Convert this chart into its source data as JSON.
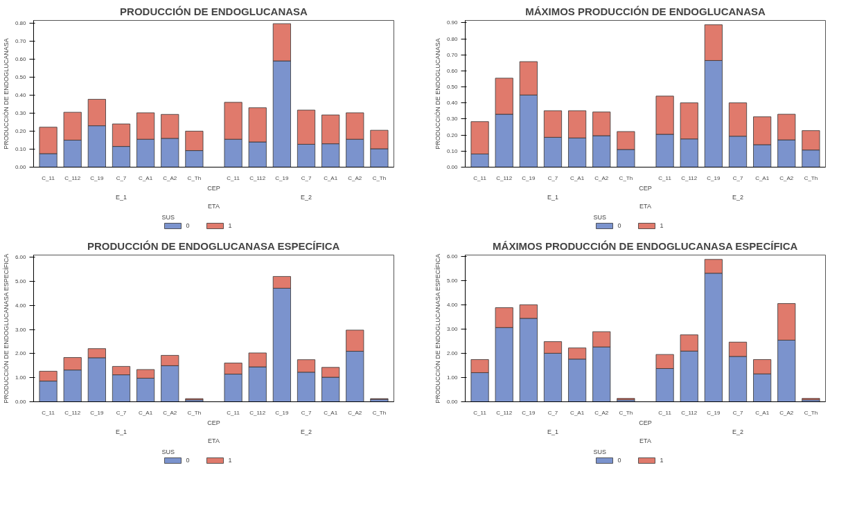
{
  "chart_data": [
    {
      "type": "bar",
      "stacked": true,
      "title": "PRODUCCIÓN DE ENDOGLUCANASA",
      "ylabel": "PRODUCCIÓN DE ENDOGLUCANASA",
      "xlabel": "CEP",
      "legend_title": "SUS",
      "legend": "bottom",
      "grid": false,
      "annotations": [
        "E_1",
        "E_2",
        "ETA"
      ],
      "categories": [
        "C_11",
        "C_112",
        "C_19",
        "C_7",
        "C_A1",
        "C_A2",
        "C_Th",
        "C_11",
        "C_112",
        "C_19",
        "C_7",
        "C_A1",
        "C_A2",
        "C_Th"
      ],
      "series": [
        {
          "name": "0",
          "color": "#7b93cd",
          "values": [
            0.075,
            0.15,
            0.23,
            0.115,
            0.155,
            0.16,
            0.092,
            0.155,
            0.14,
            0.59,
            0.127,
            0.13,
            0.155,
            0.102
          ]
        },
        {
          "name": "1",
          "color": "#e07a6c",
          "values": [
            0.147,
            0.155,
            0.147,
            0.125,
            0.147,
            0.133,
            0.108,
            0.205,
            0.19,
            0.207,
            0.19,
            0.16,
            0.147,
            0.103
          ]
        }
      ],
      "ylim": [
        0,
        0.815
      ],
      "yticks": [
        {
          "value": 0,
          "label": "0.00"
        },
        {
          "value": 0.1,
          "label": "0.10"
        },
        {
          "value": 0.2,
          "label": "0.20"
        },
        {
          "value": 0.3,
          "label": "0.30"
        },
        {
          "value": 0.4,
          "label": "0.40"
        },
        {
          "value": 0.5,
          "label": "0.50"
        },
        {
          "value": 0.6,
          "label": "0.60"
        },
        {
          "value": 0.7,
          "label": "0.70"
        },
        {
          "value": 0.8,
          "label": "0.80"
        }
      ]
    },
    {
      "type": "bar",
      "stacked": true,
      "title": "MÁXIMOS PRODUCCIÓN DE ENDOGLUCANASA",
      "ylabel": "PRODUCCIÓN DE ENDOGLUCANASA",
      "xlabel": "CEP",
      "legend_title": "SUS",
      "legend": "bottom",
      "grid": false,
      "annotations": [
        "E_1",
        "E_2",
        "ETA"
      ],
      "categories": [
        "C_11",
        "C_112",
        "C_19",
        "C_7",
        "C_A1",
        "C_A2",
        "C_Th",
        "C_11",
        "C_112",
        "C_19",
        "C_7",
        "C_A1",
        "C_A2",
        "C_Th"
      ],
      "series": [
        {
          "name": "0",
          "color": "#7b93cd",
          "values": [
            0.082,
            0.33,
            0.45,
            0.186,
            0.182,
            0.196,
            0.11,
            0.205,
            0.176,
            0.665,
            0.193,
            0.14,
            0.17,
            0.107
          ]
        },
        {
          "name": "1",
          "color": "#e07a6c",
          "values": [
            0.202,
            0.225,
            0.208,
            0.166,
            0.17,
            0.148,
            0.112,
            0.238,
            0.225,
            0.223,
            0.208,
            0.174,
            0.16,
            0.121
          ]
        }
      ],
      "ylim": [
        0,
        0.915
      ],
      "yticks": [
        {
          "value": 0,
          "label": "0.00"
        },
        {
          "value": 0.1,
          "label": "0.10"
        },
        {
          "value": 0.2,
          "label": "0.20"
        },
        {
          "value": 0.3,
          "label": "0.30"
        },
        {
          "value": 0.4,
          "label": "0.40"
        },
        {
          "value": 0.5,
          "label": "0.50"
        },
        {
          "value": 0.6,
          "label": "0.60"
        },
        {
          "value": 0.7,
          "label": "0.70"
        },
        {
          "value": 0.8,
          "label": "0.80"
        },
        {
          "value": 0.9,
          "label": "0.90"
        }
      ]
    },
    {
      "type": "bar",
      "stacked": true,
      "title": "PRODUCCIÓN DE ENDOGLUCANASA ESPECÍFICA",
      "ylabel": "PRODUCCIÓN DE ENDOGLUCANASA ESPECÍFICA",
      "xlabel": "CEP",
      "legend_title": "SUS",
      "legend": "bottom",
      "grid": false,
      "annotations": [
        "E_1",
        "E_2",
        "ETA"
      ],
      "categories": [
        "C_11",
        "C_112",
        "C_19",
        "C_7",
        "C_A1",
        "C_A2",
        "C_Th",
        "C_11",
        "C_112",
        "C_19",
        "C_7",
        "C_A1",
        "C_A2",
        "C_Th"
      ],
      "series": [
        {
          "name": "0",
          "color": "#7b93cd",
          "values": [
            0.86,
            1.32,
            1.83,
            1.12,
            0.98,
            1.5,
            0.08,
            1.15,
            1.45,
            4.72,
            1.23,
            1.02,
            2.1,
            0.1
          ]
        },
        {
          "name": "1",
          "color": "#e07a6c",
          "values": [
            0.41,
            0.52,
            0.38,
            0.35,
            0.36,
            0.43,
            0.05,
            0.46,
            0.58,
            0.49,
            0.52,
            0.41,
            0.88,
            0.03
          ]
        }
      ],
      "ylim": [
        0,
        6.1
      ],
      "yticks": [
        {
          "value": 0,
          "label": "0.00"
        },
        {
          "value": 1,
          "label": "1.00"
        },
        {
          "value": 2,
          "label": "2.00"
        },
        {
          "value": 3,
          "label": "3.00"
        },
        {
          "value": 4,
          "label": "4.00"
        },
        {
          "value": 5,
          "label": "5.00"
        },
        {
          "value": 6,
          "label": "6.00"
        }
      ]
    },
    {
      "type": "bar",
      "stacked": true,
      "title": "MÁXIMOS PRODUCCIÓN DE ENDOGLUCANASA ESPECÍFICA",
      "ylabel": "PRODUCCIÓN DE ENDOGLUCANASA ESPECÍFICA",
      "xlabel": "CEP",
      "legend_title": "SUS",
      "legend": "bottom",
      "grid": false,
      "annotations": [
        "E_1",
        "E_2",
        "ETA"
      ],
      "categories": [
        "C_11",
        "C_112",
        "C_19",
        "C_7",
        "C_A1",
        "C_A2",
        "C_Th",
        "C_11",
        "C_112",
        "C_19",
        "C_7",
        "C_A1",
        "C_A2",
        "C_Th"
      ],
      "series": [
        {
          "name": "0",
          "color": "#7b93cd",
          "values": [
            1.2,
            3.06,
            3.44,
            2.0,
            1.76,
            2.26,
            0.08,
            1.37,
            2.09,
            5.3,
            1.87,
            1.15,
            2.54,
            0.08
          ]
        },
        {
          "name": "1",
          "color": "#e07a6c",
          "values": [
            0.54,
            0.82,
            0.56,
            0.48,
            0.46,
            0.63,
            0.06,
            0.58,
            0.67,
            0.57,
            0.59,
            0.59,
            1.51,
            0.06
          ]
        }
      ],
      "ylim": [
        0,
        6.05
      ],
      "yticks": [
        {
          "value": 0,
          "label": "0.00"
        },
        {
          "value": 1,
          "label": "1.00"
        },
        {
          "value": 2,
          "label": "2.00"
        },
        {
          "value": 3,
          "label": "3.00"
        },
        {
          "value": 4,
          "label": "4.00"
        },
        {
          "value": 5,
          "label": "5.00"
        },
        {
          "value": 6,
          "label": "6.00"
        }
      ]
    }
  ]
}
